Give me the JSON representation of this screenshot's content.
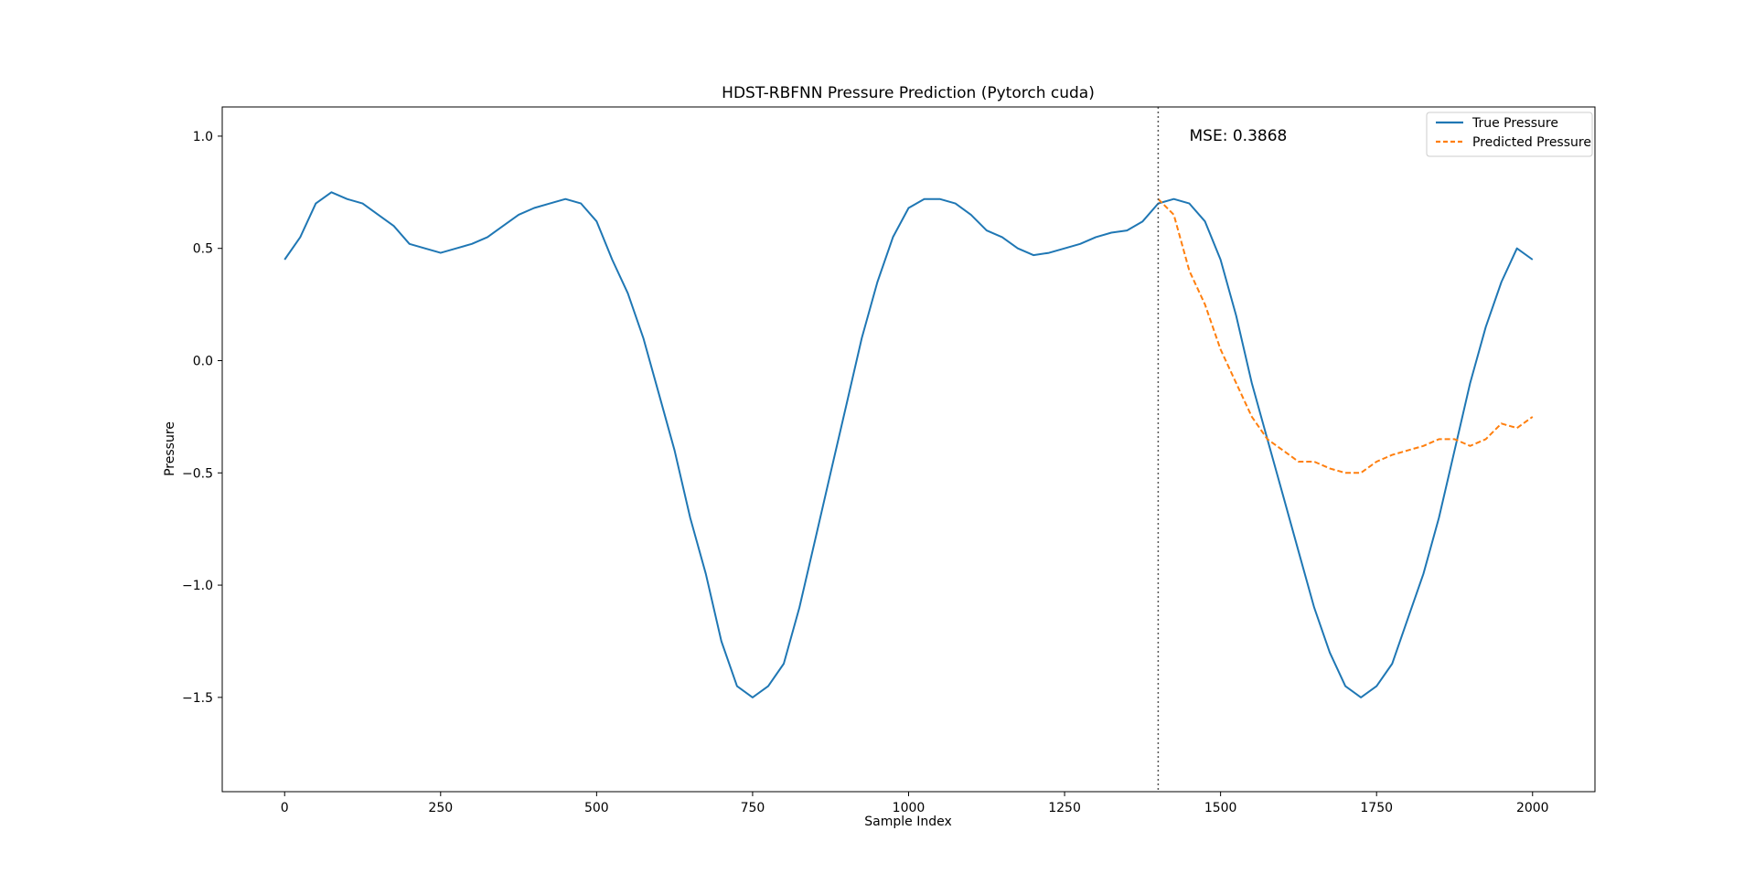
{
  "chart_data": {
    "type": "line",
    "title": "HDST-RBFNN Pressure Prediction (Pytorch cuda)",
    "xlabel": "Sample Index",
    "ylabel": "Pressure",
    "xlim": [
      -100,
      2100
    ],
    "ylim": [
      -1.92,
      1.13
    ],
    "x_ticks": [
      0,
      250,
      500,
      750,
      1000,
      1250,
      1500,
      1750,
      2000
    ],
    "x_tick_labels": [
      "0",
      "250",
      "500",
      "750",
      "1000",
      "1250",
      "1500",
      "1750",
      "2000"
    ],
    "y_ticks": [
      1.0,
      0.5,
      0.0,
      -0.5,
      -1.0,
      -1.5
    ],
    "y_tick_labels": [
      "1.0",
      "0.5",
      "0.0",
      "−0.5",
      "−1.0",
      "−1.5"
    ],
    "grid": false,
    "legend_position": "top-right",
    "annotation": {
      "text": "MSE: 0.3868",
      "x": 1450,
      "y": 1.0
    },
    "split_line_x": 1400,
    "series": [
      {
        "name": "True Pressure",
        "color": "#1f77b4",
        "style": "solid",
        "x": [
          0,
          25,
          50,
          75,
          100,
          125,
          150,
          175,
          200,
          225,
          250,
          275,
          300,
          325,
          350,
          375,
          400,
          425,
          450,
          475,
          500,
          525,
          550,
          575,
          600,
          625,
          650,
          675,
          700,
          725,
          750,
          775,
          800,
          825,
          850,
          875,
          900,
          925,
          950,
          975,
          1000,
          1025,
          1050,
          1075,
          1100,
          1125,
          1150,
          1175,
          1200,
          1225,
          1250,
          1275,
          1300,
          1325,
          1350,
          1375,
          1400,
          1425,
          1450,
          1475,
          1500,
          1525,
          1550,
          1575,
          1600,
          1625,
          1650,
          1675,
          1700,
          1725,
          1750,
          1775,
          1800,
          1825,
          1850,
          1875,
          1900,
          1925,
          1950,
          1975,
          2000
        ],
        "y": [
          0.45,
          0.55,
          0.7,
          0.75,
          0.72,
          0.7,
          0.65,
          0.6,
          0.52,
          0.5,
          0.48,
          0.5,
          0.52,
          0.55,
          0.6,
          0.65,
          0.68,
          0.7,
          0.72,
          0.7,
          0.62,
          0.45,
          0.3,
          0.1,
          -0.15,
          -0.4,
          -0.7,
          -0.95,
          -1.25,
          -1.45,
          -1.5,
          -1.45,
          -1.35,
          -1.1,
          -0.8,
          -0.5,
          -0.2,
          0.1,
          0.35,
          0.55,
          0.68,
          0.72,
          0.72,
          0.7,
          0.65,
          0.58,
          0.55,
          0.5,
          0.47,
          0.48,
          0.5,
          0.52,
          0.55,
          0.57,
          0.58,
          0.62,
          0.7,
          0.72,
          0.7,
          0.62,
          0.45,
          0.2,
          -0.1,
          -0.35,
          -0.6,
          -0.85,
          -1.1,
          -1.3,
          -1.45,
          -1.5,
          -1.45,
          -1.35,
          -1.15,
          -0.95,
          -0.7,
          -0.4,
          -0.1,
          0.15,
          0.35,
          0.5,
          0.45
        ]
      },
      {
        "name": "Predicted Pressure",
        "color": "#ff7f0e",
        "style": "dashed",
        "x": [
          1400,
          1425,
          1450,
          1475,
          1500,
          1525,
          1550,
          1575,
          1600,
          1625,
          1650,
          1675,
          1700,
          1725,
          1750,
          1775,
          1800,
          1825,
          1850,
          1875,
          1900,
          1925,
          1950,
          1975,
          2000
        ],
        "y": [
          0.72,
          0.65,
          0.4,
          0.25,
          0.05,
          -0.1,
          -0.25,
          -0.35,
          -0.4,
          -0.45,
          -0.45,
          -0.48,
          -0.5,
          -0.5,
          -0.45,
          -0.42,
          -0.4,
          -0.38,
          -0.35,
          -0.35,
          -0.38,
          -0.35,
          -0.28,
          -0.3,
          -0.25
        ]
      }
    ]
  }
}
